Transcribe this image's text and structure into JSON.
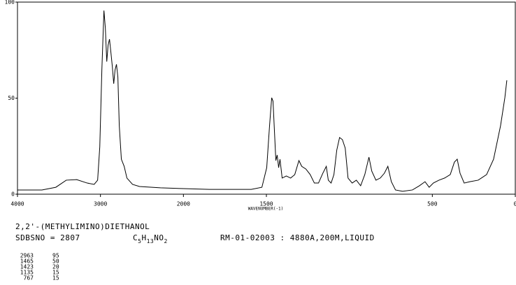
{
  "chart_data": {
    "type": "line",
    "title": "2,2'-(METHYLIMINO)DIETHANOL",
    "sdbs_no": "SDBSNO = 2807",
    "formula": "C5H13NO2",
    "measurement": "RM-01-02003 : 4880A,200M,LIQUID",
    "x_label": "WAVENUMBER(-1)",
    "xlim": [
      4000,
      0
    ],
    "x_scale_break": 2000,
    "x_scale_ratio": 2,
    "xticks": [
      4000,
      3000,
      2000,
      1500,
      500,
      0
    ],
    "ylim": [
      0,
      100
    ],
    "yticks": [
      0,
      50,
      100
    ],
    "color": "#000000",
    "x": [
      4000,
      3706,
      3538,
      3412,
      3286,
      3160,
      3076,
      3034,
      3008,
      2983,
      2958,
      2941,
      2924,
      2908,
      2891,
      2874,
      2857,
      2840,
      2824,
      2807,
      2790,
      2773,
      2748,
      2714,
      2681,
      2613,
      2529,
      2277,
      2000,
      1844,
      1591,
      1527,
      1498,
      1481,
      1468,
      1460,
      1451,
      1443,
      1435,
      1426,
      1418,
      1405,
      1380,
      1354,
      1329,
      1304,
      1287,
      1262,
      1236,
      1211,
      1186,
      1160,
      1139,
      1127,
      1110,
      1093,
      1076,
      1059,
      1042,
      1025,
      1008,
      983,
      958,
      932,
      907,
      882,
      865,
      840,
      814,
      789,
      768,
      747,
      722,
      679,
      620,
      578,
      544,
      519,
      494,
      460,
      426,
      392,
      367,
      350,
      333,
      308,
      274,
      224,
      173,
      131,
      89,
      63,
      51
    ],
    "values": [
      2.2,
      2.2,
      3.6,
      7.3,
      7.6,
      5.8,
      5.1,
      7.3,
      24.7,
      64.7,
      95.6,
      86.5,
      69,
      77.5,
      80.7,
      73.8,
      66.5,
      57.5,
      64.7,
      67.6,
      61,
      35.6,
      18.2,
      14.5,
      8.4,
      5.1,
      4,
      3.3,
      2.9,
      2.5,
      2.5,
      3.6,
      13.8,
      35.6,
      50.2,
      48.4,
      32,
      17.5,
      20.4,
      13.8,
      18.2,
      8.4,
      9.5,
      8.4,
      10.2,
      17.5,
      14.5,
      13.1,
      10.2,
      5.8,
      5.8,
      10.9,
      14.5,
      7.3,
      5.8,
      10.2,
      22.9,
      29.5,
      28.4,
      24,
      8.4,
      5.8,
      7.3,
      4.4,
      10.2,
      19.3,
      12,
      7.3,
      8.4,
      10.9,
      14.5,
      6.5,
      2.2,
      1.5,
      2.2,
      4.4,
      6.5,
      3.6,
      5.8,
      7.3,
      8.4,
      10.2,
      16.7,
      18.2,
      10.9,
      5.8,
      6.5,
      7.3,
      10.2,
      18.2,
      35.6,
      50.2,
      59.3
    ],
    "peaks": [
      [
        "2963",
        "95"
      ],
      [
        "1465",
        "50"
      ],
      [
        "1423",
        "20"
      ],
      [
        "1135",
        "15"
      ],
      [
        "767",
        "15"
      ]
    ]
  }
}
